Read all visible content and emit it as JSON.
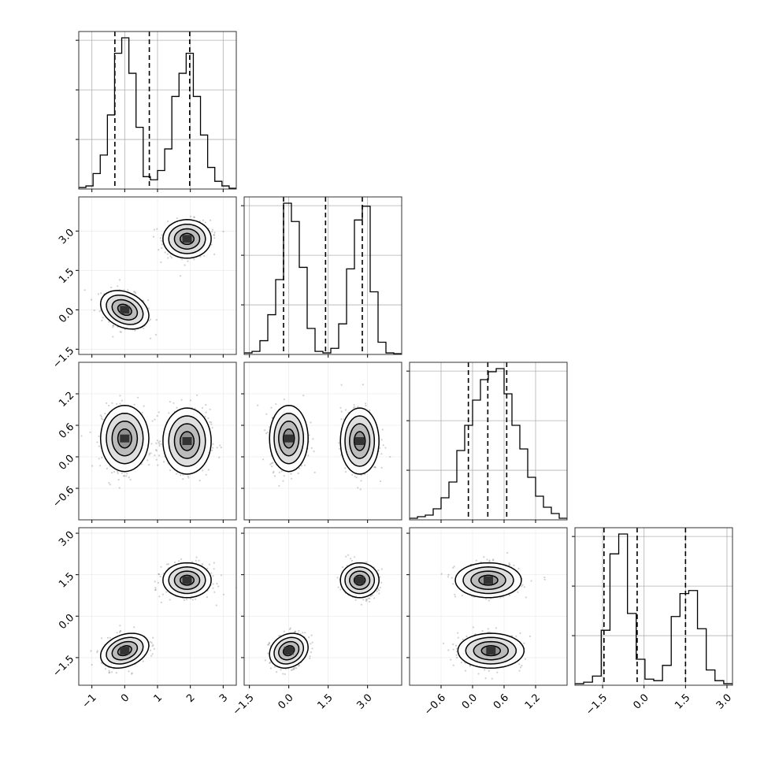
{
  "chart_data": {
    "type": "corner",
    "dimensions": [
      {
        "range": [
          -1.4,
          3.4
        ],
        "ticks": [
          -1,
          0,
          1,
          2,
          3
        ],
        "tick_labels": [
          "−1",
          "0",
          "1",
          "2",
          "3"
        ],
        "quantiles": [
          -0.3,
          0.75,
          1.98
        ],
        "hist": [
          1,
          2,
          10,
          22,
          48,
          88,
          98,
          75,
          40,
          8,
          6,
          12,
          26,
          60,
          75,
          88,
          60,
          35,
          14,
          5,
          2,
          0.5
        ]
      },
      {
        "range": [
          -1.7,
          4.3
        ],
        "ticks": [
          -1.5,
          0.0,
          1.5,
          3.0
        ],
        "tick_labels": [
          "−1.5",
          "0.0",
          "1.5",
          "3.0"
        ],
        "quantiles": [
          -0.2,
          1.4,
          2.8
        ],
        "hist": [
          1,
          2,
          9,
          26,
          49,
          99,
          87,
          57,
          17,
          2,
          1,
          4,
          20,
          56,
          88,
          97,
          41,
          8,
          1,
          0.5
        ]
      },
      {
        "range": [
          -1.2,
          1.8
        ],
        "ticks": [
          -0.6,
          0.0,
          0.6,
          1.2
        ],
        "tick_labels": [
          "−0.6",
          "0.0",
          "0.6",
          "1.2"
        ],
        "quantiles": [
          -0.08,
          0.29,
          0.65
        ],
        "hist": [
          1,
          2,
          3,
          7,
          14,
          24,
          44,
          60,
          76,
          89,
          94,
          96,
          80,
          60,
          45,
          27,
          15,
          8,
          4,
          1
        ]
      },
      {
        "range": [
          -2.5,
          3.2
        ],
        "ticks": [
          -1.5,
          0.0,
          1.5,
          3.0
        ],
        "tick_labels": [
          "−1.5",
          "0.0",
          "1.5",
          "3.0"
        ],
        "quantiles": [
          -1.45,
          -0.25,
          1.5
        ],
        "hist": [
          1,
          2,
          6,
          36,
          86,
          99,
          47,
          17,
          4,
          3,
          13,
          45,
          60,
          62,
          37,
          10,
          3,
          1
        ]
      }
    ],
    "clusters": [
      {
        "center": [
          0.0,
          0.0,
          0.35,
          -1.25
        ],
        "sd": [
          0.35,
          0.35,
          0.3,
          0.3
        ],
        "corr": {
          "0-1": -0.3,
          "0-3": 0.3,
          "1-3": 0.2
        }
      },
      {
        "center": [
          1.9,
          2.7,
          0.3,
          1.3
        ],
        "sd": [
          0.35,
          0.35,
          0.3,
          0.3
        ],
        "corr": {}
      }
    ],
    "grid": true
  }
}
